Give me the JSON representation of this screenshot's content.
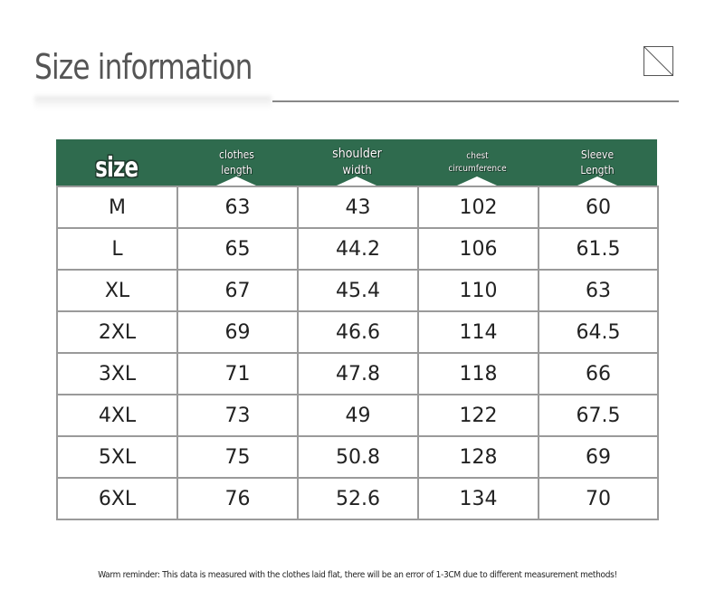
{
  "header": {
    "title": "Size information"
  },
  "table": {
    "columns": [
      {
        "line1": "size",
        "line2": ""
      },
      {
        "line1": "clothes",
        "line2": "length"
      },
      {
        "line1": "shoulder",
        "line2": "width"
      },
      {
        "line1": "chest",
        "line2": "circumference"
      },
      {
        "line1": "Sleeve",
        "line2": "Length"
      }
    ],
    "rows": [
      [
        "M",
        "63",
        "43",
        "102",
        "60"
      ],
      [
        "L",
        "65",
        "44.2",
        "106",
        "61.5"
      ],
      [
        "XL",
        "67",
        "45.4",
        "110",
        "63"
      ],
      [
        "2XL",
        "69",
        "46.6",
        "114",
        "64.5"
      ],
      [
        "3XL",
        "71",
        "47.8",
        "118",
        "66"
      ],
      [
        "4XL",
        "73",
        "49",
        "122",
        "67.5"
      ],
      [
        "5XL",
        "75",
        "50.8",
        "128",
        "69"
      ],
      [
        "6XL",
        "76",
        "52.6",
        "134",
        "70"
      ]
    ]
  },
  "footer": {
    "note": "Warm reminder: This data is measured with the clothes laid flat, there will be an error of 1-3CM due to different measurement methods!"
  },
  "colors": {
    "header_green": "#2f6b4e",
    "grid": "#9a9a9a",
    "title_gray": "#555555"
  },
  "icons": {
    "corner": "diagonal-square-icon"
  }
}
